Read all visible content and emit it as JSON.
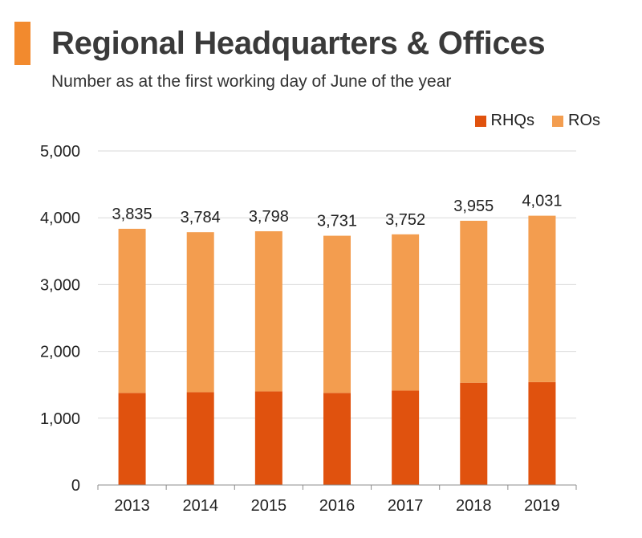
{
  "header": {
    "title": "Regional Headquarters & Offices",
    "subtitle": "Number as at the first working day of June of the year"
  },
  "colors": {
    "accent": "#F28A2E",
    "rhqs": "#E0520E",
    "ros": "#F39D4F",
    "grid": "#d9d9d9",
    "axis": "#8c8c8c"
  },
  "chart_data": {
    "type": "bar",
    "stacked": true,
    "categories": [
      "2013",
      "2014",
      "2015",
      "2016",
      "2017",
      "2018",
      "2019"
    ],
    "series": [
      {
        "name": "RHQs",
        "values": [
          1379,
          1389,
          1401,
          1379,
          1413,
          1530,
          1541
        ]
      },
      {
        "name": "ROs",
        "values": [
          2456,
          2395,
          2397,
          2352,
          2339,
          2425,
          2490
        ]
      }
    ],
    "totals": [
      3835,
      3784,
      3798,
      3731,
      3752,
      3955,
      4031
    ],
    "total_labels": [
      "3,835",
      "3,784",
      "3,798",
      "3,731",
      "3,752",
      "3,955",
      "4,031"
    ],
    "ylim": [
      0,
      5000
    ],
    "yticks": [
      0,
      1000,
      2000,
      3000,
      4000,
      5000
    ],
    "ytick_labels": [
      "0",
      "1,000",
      "2,000",
      "3,000",
      "4,000",
      "5,000"
    ],
    "grid": true,
    "legend_position": "top-right"
  }
}
